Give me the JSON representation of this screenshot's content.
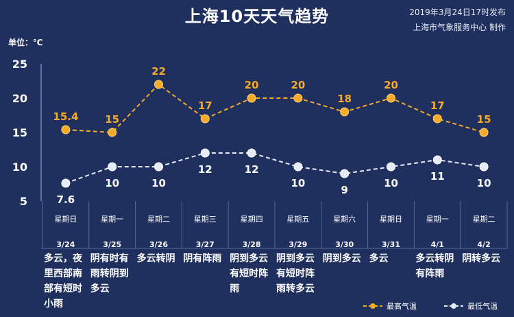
{
  "header": {
    "title": "上海10天天气趋势",
    "issue_time": "2019年3月24日17时发布",
    "issuer": "上海市气象服务中心  制作",
    "unit": "单位：℃"
  },
  "chart_data": {
    "type": "line",
    "ylim": [
      5,
      25
    ],
    "yticks": [
      5,
      10,
      15,
      20,
      25
    ],
    "categories": [
      "3/24",
      "3/25",
      "3/26",
      "3/27",
      "3/28",
      "3/29",
      "3/30",
      "3/31",
      "4/1",
      "4/2"
    ],
    "weekdays": [
      "星期日",
      "星期一",
      "星期二",
      "星期三",
      "星期四",
      "星期五",
      "星期六",
      "星期日",
      "星期一",
      "星期二"
    ],
    "weather_lines": [
      [
        "多云，夜",
        "里西部南",
        "部有短时",
        "小雨"
      ],
      [
        "阴有时有",
        "雨转阴到",
        "多云"
      ],
      [
        "多云转阴"
      ],
      [
        "阴有阵雨"
      ],
      [
        "阴到多云",
        "有短时阵",
        "雨"
      ],
      [
        "阴到多云",
        "有短时阵",
        "雨转多云"
      ],
      [
        "阴到多云"
      ],
      [
        "多云"
      ],
      [
        "多云转阴",
        "有阵雨"
      ],
      [
        "阴转多云"
      ]
    ],
    "series": [
      {
        "name": "最高气温",
        "values": [
          15.4,
          15,
          22,
          17,
          20,
          20,
          18,
          20,
          17,
          15
        ],
        "color": "#f5ab2a"
      },
      {
        "name": "最低气温",
        "values": [
          7.6,
          10,
          10,
          12,
          12,
          10,
          9,
          10,
          11,
          10
        ],
        "color": "#e6ecf7"
      }
    ],
    "grid": false,
    "legend": "bottom-right"
  }
}
